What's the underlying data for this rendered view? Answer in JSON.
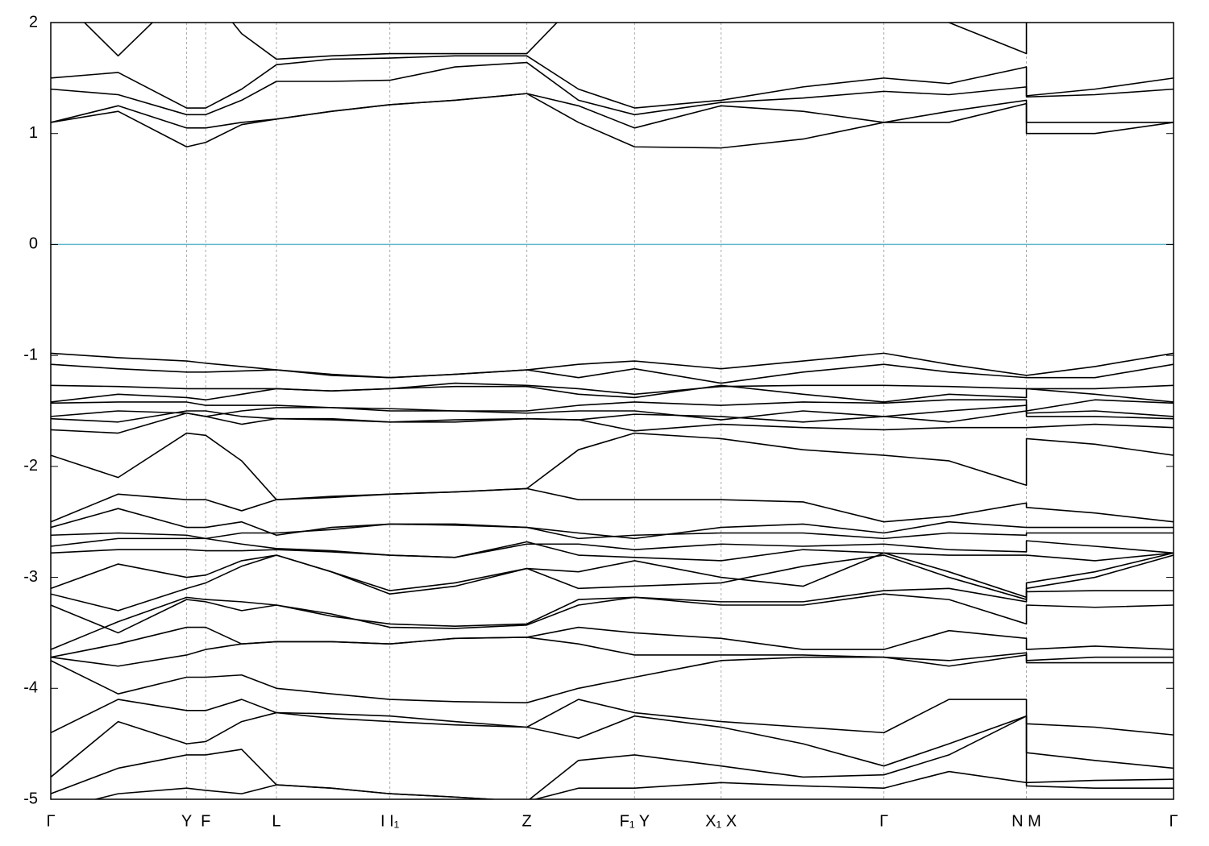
{
  "chart_data": {
    "type": "band-structure",
    "xlim": [
      0,
      1
    ],
    "ylim": [
      -5,
      2
    ],
    "yticks": [
      2,
      1,
      0,
      -1,
      -2,
      -3,
      -4,
      -5
    ],
    "xticks": [
      {
        "value": 0,
        "label": "Γ"
      },
      {
        "value": 0.121,
        "label": "Y"
      },
      {
        "value": 0.138,
        "label": "F"
      },
      {
        "value": 0.201,
        "label": "L"
      },
      {
        "value": 0.302,
        "label": "I I₁"
      },
      {
        "value": 0.424,
        "label": "Z"
      },
      {
        "value": 0.52,
        "label": "F₁ Y"
      },
      {
        "value": 0.597,
        "label": "X₁ X"
      },
      {
        "value": 0.742,
        "label": "Γ"
      },
      {
        "value": 0.869,
        "label": "N M"
      },
      {
        "value": 1,
        "label": "Γ"
      }
    ],
    "x_grid": true,
    "fermi_level": 0,
    "fermi_color": "#5fb8cc",
    "x": [
      0,
      0.06,
      0.121,
      0.138,
      0.17,
      0.201,
      0.25,
      0.302,
      0.36,
      0.424,
      0.47,
      0.52,
      0.597,
      0.67,
      0.742,
      0.8,
      0.869,
      0.869,
      0.93,
      1
    ],
    "series": [
      {
        "color": "#000000",
        "values": [
          1.1,
          1.2,
          0.88,
          0.92,
          1.08,
          1.13,
          1.2,
          1.26,
          1.3,
          1.36,
          1.1,
          0.88,
          0.87,
          0.95,
          1.1,
          1.1,
          1.27,
          1.0,
          1.0,
          1.1
        ]
      },
      {
        "color": "#000000",
        "values": [
          1.1,
          1.25,
          1.05,
          1.05,
          1.1,
          1.13,
          1.2,
          1.26,
          1.3,
          1.36,
          1.25,
          1.05,
          1.25,
          1.2,
          1.1,
          1.2,
          1.3,
          1.1,
          1.1,
          1.1
        ]
      },
      {
        "color": "#000000",
        "values": [
          1.4,
          1.35,
          1.17,
          1.17,
          1.3,
          1.47,
          1.47,
          1.48,
          1.6,
          1.64,
          1.3,
          1.17,
          1.28,
          1.32,
          1.38,
          1.35,
          1.42,
          1.33,
          1.35,
          1.4
        ]
      },
      {
        "color": "#000000",
        "values": [
          1.5,
          1.55,
          1.23,
          1.23,
          1.4,
          1.62,
          1.67,
          1.68,
          1.7,
          1.7,
          1.4,
          1.23,
          1.3,
          1.42,
          1.5,
          1.45,
          1.6,
          1.34,
          1.4,
          1.5
        ]
      },
      {
        "color": "#000000",
        "values": [
          2.3,
          1.7,
          2.3,
          2.3,
          1.9,
          1.67,
          1.7,
          1.72,
          1.72,
          1.72,
          2.2,
          2.3,
          2.3,
          2.3,
          2.3,
          2.0,
          1.72,
          2.3,
          2.3,
          2.3
        ]
      },
      {
        "color": "#000000",
        "values": [
          -0.98,
          -1.02,
          -1.05,
          -1.07,
          -1.1,
          -1.13,
          -1.17,
          -1.2,
          -1.17,
          -1.13,
          -1.08,
          -1.05,
          -1.12,
          -1.05,
          -0.98,
          -1.08,
          -1.18,
          -1.18,
          -1.1,
          -0.98
        ]
      },
      {
        "color": "#000000",
        "values": [
          -1.08,
          -1.12,
          -1.15,
          -1.15,
          -1.14,
          -1.13,
          -1.18,
          -1.2,
          -1.17,
          -1.13,
          -1.2,
          -1.12,
          -1.25,
          -1.15,
          -1.08,
          -1.15,
          -1.2,
          -1.2,
          -1.2,
          -1.08
        ]
      },
      {
        "color": "#000000",
        "values": [
          -1.27,
          -1.28,
          -1.3,
          -1.3,
          -1.3,
          -1.3,
          -1.32,
          -1.3,
          -1.25,
          -1.27,
          -1.3,
          -1.35,
          -1.28,
          -1.27,
          -1.27,
          -1.28,
          -1.3,
          -1.3,
          -1.3,
          -1.27
        ]
      },
      {
        "color": "#000000",
        "values": [
          -1.42,
          -1.35,
          -1.38,
          -1.4,
          -1.35,
          -1.3,
          -1.32,
          -1.3,
          -1.28,
          -1.28,
          -1.35,
          -1.38,
          -1.27,
          -1.35,
          -1.42,
          -1.35,
          -1.38,
          -1.3,
          -1.35,
          -1.42
        ]
      },
      {
        "color": "#000000",
        "values": [
          -1.43,
          -1.42,
          -1.42,
          -1.45,
          -1.45,
          -1.45,
          -1.47,
          -1.48,
          -1.5,
          -1.5,
          -1.45,
          -1.42,
          -1.45,
          -1.42,
          -1.43,
          -1.4,
          -1.4,
          -1.5,
          -1.4,
          -1.43
        ]
      },
      {
        "color": "#000000",
        "values": [
          -1.55,
          -1.5,
          -1.52,
          -1.55,
          -1.5,
          -1.47,
          -1.47,
          -1.5,
          -1.5,
          -1.52,
          -1.5,
          -1.5,
          -1.58,
          -1.5,
          -1.55,
          -1.5,
          -1.45,
          -1.52,
          -1.5,
          -1.55
        ]
      },
      {
        "color": "#000000",
        "values": [
          -1.57,
          -1.6,
          -1.5,
          -1.5,
          -1.55,
          -1.57,
          -1.57,
          -1.6,
          -1.58,
          -1.57,
          -1.58,
          -1.53,
          -1.55,
          -1.6,
          -1.55,
          -1.6,
          -1.5,
          -1.55,
          -1.55,
          -1.57
        ]
      },
      {
        "color": "#000000",
        "values": [
          -1.67,
          -1.7,
          -1.52,
          -1.55,
          -1.62,
          -1.57,
          -1.58,
          -1.6,
          -1.6,
          -1.57,
          -1.58,
          -1.68,
          -1.62,
          -1.65,
          -1.67,
          -1.65,
          -1.65,
          -1.65,
          -1.62,
          -1.65
        ]
      },
      {
        "color": "#000000",
        "values": [
          -1.9,
          -2.1,
          -1.7,
          -1.72,
          -1.95,
          -2.3,
          -2.27,
          -2.25,
          -2.23,
          -2.2,
          -1.85,
          -1.7,
          -1.75,
          -1.85,
          -1.9,
          -1.95,
          -2.17,
          -1.75,
          -1.8,
          -1.9
        ]
      },
      {
        "color": "#000000",
        "values": [
          -2.5,
          -2.25,
          -2.3,
          -2.3,
          -2.4,
          -2.3,
          -2.28,
          -2.25,
          -2.23,
          -2.2,
          -2.3,
          -2.3,
          -2.3,
          -2.32,
          -2.5,
          -2.45,
          -2.33,
          -2.37,
          -2.42,
          -2.5
        ]
      },
      {
        "color": "#000000",
        "values": [
          -2.55,
          -2.38,
          -2.55,
          -2.55,
          -2.5,
          -2.62,
          -2.55,
          -2.52,
          -2.52,
          -2.55,
          -2.6,
          -2.65,
          -2.55,
          -2.52,
          -2.6,
          -2.5,
          -2.55,
          -2.55,
          -2.55,
          -2.55
        ]
      },
      {
        "color": "#000000",
        "values": [
          -2.62,
          -2.6,
          -2.62,
          -2.65,
          -2.6,
          -2.6,
          -2.57,
          -2.52,
          -2.53,
          -2.55,
          -2.65,
          -2.62,
          -2.6,
          -2.6,
          -2.65,
          -2.6,
          -2.62,
          -2.6,
          -2.6,
          -2.6
        ]
      },
      {
        "color": "#000000",
        "values": [
          -2.72,
          -2.65,
          -2.65,
          -2.65,
          -2.7,
          -2.74,
          -2.76,
          -2.8,
          -2.82,
          -2.7,
          -2.7,
          -2.75,
          -2.7,
          -2.72,
          -2.7,
          -2.75,
          -2.77,
          -2.67,
          -2.72,
          -2.78
        ]
      },
      {
        "color": "#000000",
        "values": [
          -2.78,
          -2.75,
          -2.75,
          -2.76,
          -2.76,
          -2.75,
          -2.77,
          -2.8,
          -2.82,
          -2.68,
          -2.8,
          -2.82,
          -2.85,
          -2.75,
          -2.78,
          -2.8,
          -2.8,
          -2.8,
          -2.85,
          -2.78
        ]
      },
      {
        "color": "#000000",
        "values": [
          -3.1,
          -2.88,
          -3.0,
          -2.98,
          -2.85,
          -2.8,
          -2.95,
          -3.12,
          -3.05,
          -2.92,
          -2.95,
          -2.85,
          -3.0,
          -3.08,
          -2.78,
          -2.95,
          -3.18,
          -3.05,
          -2.95,
          -2.78
        ]
      },
      {
        "color": "#000000",
        "values": [
          -3.15,
          -3.3,
          -3.1,
          -3.05,
          -2.9,
          -2.8,
          -2.95,
          -3.15,
          -3.08,
          -2.92,
          -3.1,
          -3.08,
          -3.05,
          -2.9,
          -2.8,
          -3.0,
          -3.2,
          -3.1,
          -3.0,
          -2.8
        ]
      },
      {
        "color": "#000000",
        "values": [
          -3.25,
          -3.5,
          -3.2,
          -3.22,
          -3.3,
          -3.25,
          -3.35,
          -3.42,
          -3.44,
          -3.42,
          -3.2,
          -3.18,
          -3.22,
          -3.22,
          -3.12,
          -3.1,
          -3.22,
          -3.13,
          -3.12,
          -3.12
        ]
      },
      {
        "color": "#000000",
        "values": [
          -3.65,
          -3.4,
          -3.18,
          -3.2,
          -3.22,
          -3.25,
          -3.33,
          -3.45,
          -3.46,
          -3.43,
          -3.25,
          -3.18,
          -3.25,
          -3.25,
          -3.15,
          -3.2,
          -3.42,
          -3.25,
          -3.27,
          -3.25
        ]
      },
      {
        "color": "#000000",
        "values": [
          -3.72,
          -3.6,
          -3.45,
          -3.45,
          -3.6,
          -3.58,
          -3.58,
          -3.6,
          -3.55,
          -3.54,
          -3.45,
          -3.5,
          -3.55,
          -3.65,
          -3.65,
          -3.48,
          -3.55,
          -3.65,
          -3.62,
          -3.65
        ]
      },
      {
        "color": "#000000",
        "values": [
          -3.72,
          -3.8,
          -3.7,
          -3.65,
          -3.6,
          -3.58,
          -3.58,
          -3.6,
          -3.55,
          -3.54,
          -3.6,
          -3.7,
          -3.7,
          -3.7,
          -3.72,
          -3.75,
          -3.68,
          -3.75,
          -3.72,
          -3.72
        ]
      },
      {
        "color": "#000000",
        "values": [
          -3.75,
          -4.05,
          -3.9,
          -3.9,
          -3.88,
          -4.0,
          -4.05,
          -4.1,
          -4.12,
          -4.13,
          -4.0,
          -3.9,
          -3.75,
          -3.72,
          -3.72,
          -3.8,
          -3.7,
          -3.77,
          -3.77,
          -3.77
        ]
      },
      {
        "color": "#000000",
        "values": [
          -4.4,
          -4.1,
          -4.2,
          -4.2,
          -4.1,
          -4.22,
          -4.27,
          -4.3,
          -4.33,
          -4.35,
          -4.1,
          -4.22,
          -4.3,
          -4.35,
          -4.4,
          -4.1,
          -4.1,
          -4.32,
          -4.35,
          -4.42
        ]
      },
      {
        "color": "#000000",
        "values": [
          -4.8,
          -4.3,
          -4.5,
          -4.48,
          -4.3,
          -4.22,
          -4.23,
          -4.25,
          -4.3,
          -4.35,
          -4.45,
          -4.25,
          -4.35,
          -4.5,
          -4.7,
          -4.5,
          -4.25,
          -4.58,
          -4.65,
          -4.72
        ]
      },
      {
        "color": "#000000",
        "values": [
          -4.95,
          -4.72,
          -4.6,
          -4.6,
          -4.55,
          -4.87,
          -4.9,
          -4.95,
          -4.98,
          -5.02,
          -4.65,
          -4.6,
          -4.7,
          -4.8,
          -4.78,
          -4.6,
          -4.25,
          -4.85,
          -4.83,
          -4.82
        ]
      },
      {
        "color": "#000000",
        "values": [
          -5.1,
          -4.95,
          -4.9,
          -4.92,
          -4.95,
          -4.87,
          -4.9,
          -4.95,
          -4.98,
          -5.02,
          -4.9,
          -4.9,
          -4.85,
          -4.88,
          -4.9,
          -4.75,
          -4.85,
          -4.88,
          -4.9,
          -4.9
        ]
      }
    ]
  }
}
